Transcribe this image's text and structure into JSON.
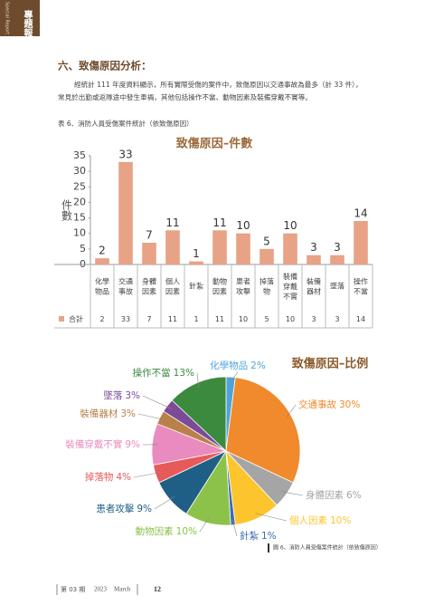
{
  "side_tab": {
    "title": "專題報導",
    "subtitle": "Special Report"
  },
  "section": {
    "heading": "六、致傷原因分析：",
    "lines": [
      "經統計 111 年度資料顯示，所有實際受傷的案件中，致傷原因以交通事故為最多（計 33 件），",
      "常見於出勤或返隊途中發生車禍，其他包括操作不當、動物因素及裝備穿戴不實等。"
    ]
  },
  "table_caption": "表 6、消防人員受傷案件統計（依致傷原因）",
  "chart_data": [
    {
      "type": "bar",
      "title": "致傷原因–件數",
      "y_label": "件數",
      "categories": [
        "化學物品",
        "交通事故",
        "身體因素",
        "個人因素",
        "針紮",
        "動物因素",
        "患者攻擊",
        "掉落物",
        "裝備穿戴不實",
        "裝備器材",
        "墜落",
        "操作不當"
      ],
      "series": [
        {
          "name": "合計",
          "color": "#e8a286",
          "values": [
            2,
            33,
            7,
            11,
            1,
            11,
            10,
            5,
            10,
            3,
            3,
            14
          ]
        }
      ],
      "ylim": [
        0,
        35
      ],
      "yticks": [
        0,
        5,
        10,
        15,
        20,
        25,
        30,
        35
      ],
      "grid": false
    },
    {
      "type": "pie",
      "title": "致傷原因–比例",
      "categories": [
        "化學物品",
        "交通事故",
        "身體因素",
        "個人因素",
        "針紮",
        "動物因素",
        "患者攻擊",
        "掉落物",
        "裝備穿戴不實",
        "裝備器材",
        "墜落",
        "操作不當"
      ],
      "values": [
        2,
        30,
        6,
        10,
        1,
        10,
        9,
        4,
        9,
        3,
        3,
        13
      ],
      "value_labels": [
        "2%",
        "30%",
        "6%",
        "10%",
        "1%",
        "10%",
        "9%",
        "4%",
        "9%",
        "3%",
        "3%",
        "13%"
      ],
      "colors": [
        "#4fa3d9",
        "#f08a2c",
        "#a5a5a5",
        "#fcc52e",
        "#3d6bb5",
        "#8cc24a",
        "#1f5f85",
        "#e8595a",
        "#e98bbf",
        "#b9814a",
        "#7b4b9a",
        "#3c8a3e"
      ]
    }
  ],
  "figure_caption": "圖 6、消防人員受傷案件統計（依致傷原因）",
  "footer": {
    "issue": "第 03 期",
    "year": "2023",
    "month": "March",
    "page": "12"
  }
}
